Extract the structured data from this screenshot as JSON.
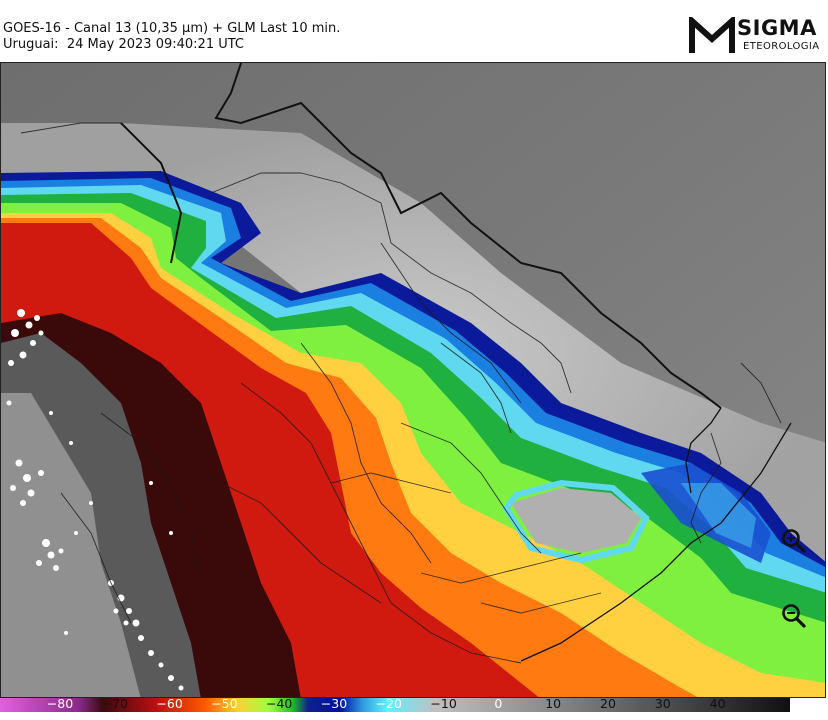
{
  "header": {
    "title_line1": "GOES-16 - Canal 13 (10,35 µm) + GLM Last 10 min.",
    "title_line2": "Uruguai:  24 May 2023 09:40:21 UTC"
  },
  "logo": {
    "word": "SIGMA",
    "sub": "ETEOROLOGIA"
  },
  "map": {
    "zoom_in_icon": "zoom-in-magnifier-icon",
    "zoom_out_icon": "zoom-out-magnifier-icon"
  },
  "colorbar": {
    "labels": [
      "−80",
      "−70",
      "−60",
      "−50",
      "−40",
      "−30",
      "−20",
      "−10",
      "0",
      "10",
      "20",
      "30",
      "40"
    ],
    "label_colors": [
      "#ffffff",
      "#111111",
      "#ffffff",
      "#ffffff",
      "#111111",
      "#ffffff",
      "#ffffff",
      "#111111",
      "#ffffff",
      "#111111",
      "#111111",
      "#111111",
      "#111111"
    ],
    "gradient_colors": [
      "#e060e0",
      "#8a2a8a",
      "#3a0a10",
      "#c01010",
      "#ff5a00",
      "#ffd030",
      "#a0ff40",
      "#20c020",
      "#102090",
      "#0010a0",
      "#30a0e0",
      "#60f0ff",
      "#c0c0c0",
      "#808080",
      "#404040",
      "#101010"
    ]
  }
}
